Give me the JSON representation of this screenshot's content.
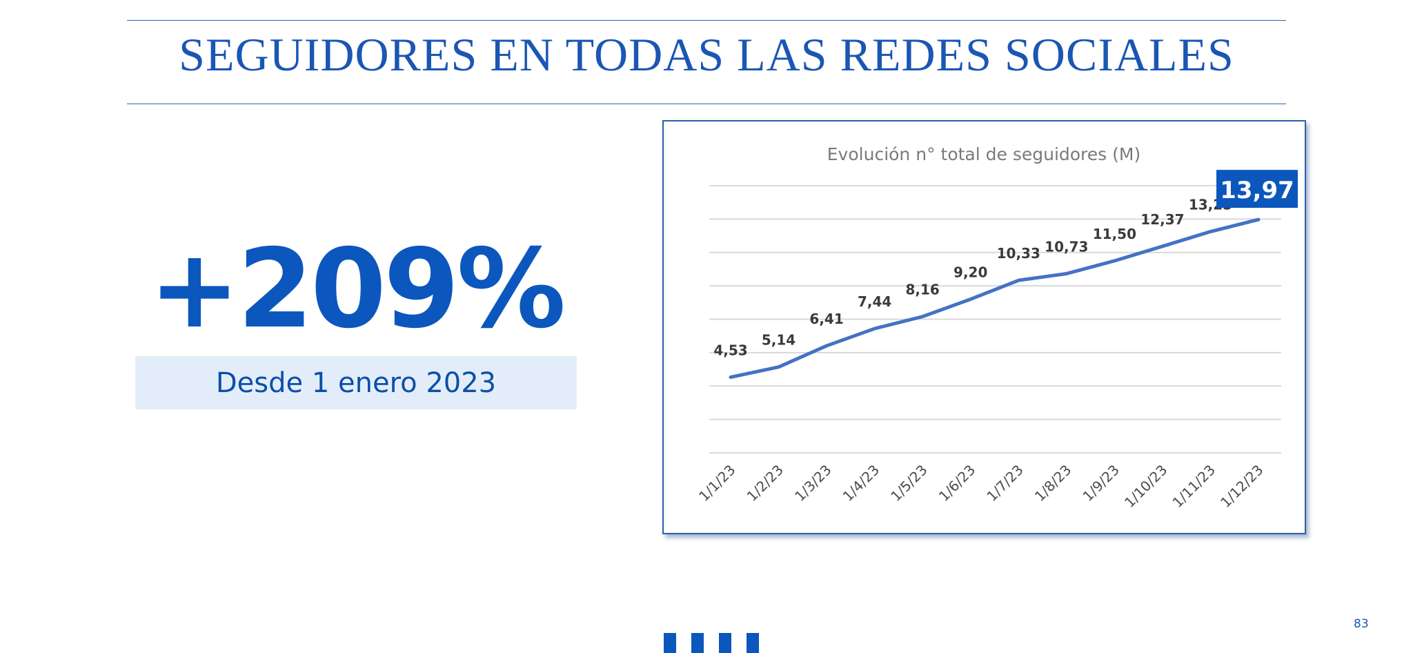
{
  "slide": {
    "title": "SEGUIDORES EN TODAS LAS REDES SOCIALES",
    "highlight_value": "+209%",
    "highlight_caption": "Desde 1 enero 2023",
    "page_number": "83",
    "colors": {
      "accent": "#0b57bd",
      "line": "#4472c4",
      "title": "#1a56b4"
    }
  },
  "chart_data": {
    "type": "line",
    "title": "Evolución n° total de seguidores (M)",
    "categories": [
      "1/1/23",
      "1/2/23",
      "1/3/23",
      "1/4/23",
      "1/5/23",
      "1/6/23",
      "1/7/23",
      "1/8/23",
      "1/9/23",
      "1/10/23",
      "1/11/23",
      "1/12/23"
    ],
    "values": [
      4.53,
      5.14,
      6.41,
      7.44,
      8.16,
      9.2,
      10.33,
      10.73,
      11.5,
      12.37,
      13.25,
      13.97
    ],
    "data_labels": [
      "4,53",
      "5,14",
      "6,41",
      "7,44",
      "8,16",
      "9,20",
      "10,33",
      "10,73",
      "11,50",
      "12,37",
      "13,25",
      "13,97"
    ],
    "highlighted_label_index": 11,
    "ylim": [
      0,
      16
    ],
    "y_gridlines": [
      0,
      2,
      4,
      6,
      8,
      10,
      12,
      14,
      16
    ],
    "y_tick_labels_shown": false,
    "grid": true,
    "legend": "none",
    "xlabel": "",
    "ylabel": ""
  }
}
